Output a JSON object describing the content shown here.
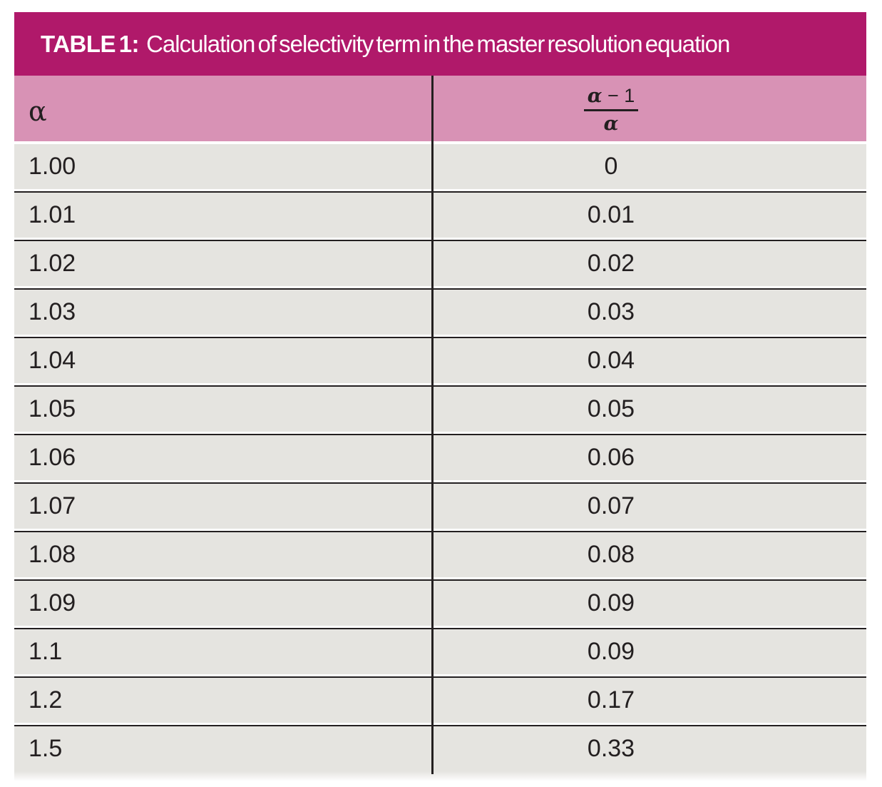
{
  "colors": {
    "title_bar_background": "#b0196a",
    "column_header_background": "#d892b5",
    "row_background": "#e5e4e0",
    "line_color": "#231f20",
    "title_text_color": "#ffffff"
  },
  "table": {
    "title_label": "TABLE 1:",
    "title_text": "Calculation of selectivity term in the master resolution equation",
    "columns": {
      "col1_label": "α",
      "col2_numerator_alpha": "α",
      "col2_numerator_rest": " − 1",
      "col2_denominator": "α"
    },
    "rows": [
      {
        "alpha": "1.00",
        "value": "0"
      },
      {
        "alpha": "1.01",
        "value": "0.01"
      },
      {
        "alpha": "1.02",
        "value": "0.02"
      },
      {
        "alpha": "1.03",
        "value": "0.03"
      },
      {
        "alpha": "1.04",
        "value": "0.04"
      },
      {
        "alpha": "1.05",
        "value": "0.05"
      },
      {
        "alpha": "1.06",
        "value": "0.06"
      },
      {
        "alpha": "1.07",
        "value": "0.07"
      },
      {
        "alpha": "1.08",
        "value": "0.08"
      },
      {
        "alpha": "1.09",
        "value": "0.09"
      },
      {
        "alpha": "1.1",
        "value": "0.09"
      },
      {
        "alpha": "1.2",
        "value": "0.17"
      },
      {
        "alpha": "1.5",
        "value": "0.33"
      }
    ]
  },
  "chart_data": {
    "type": "table",
    "title": "TABLE 1: Calculation of selectivity term in the master resolution equation",
    "columns": [
      "α",
      "(α − 1)/α"
    ],
    "rows": [
      [
        "1.00",
        "0"
      ],
      [
        "1.01",
        "0.01"
      ],
      [
        "1.02",
        "0.02"
      ],
      [
        "1.03",
        "0.03"
      ],
      [
        "1.04",
        "0.04"
      ],
      [
        "1.05",
        "0.05"
      ],
      [
        "1.06",
        "0.06"
      ],
      [
        "1.07",
        "0.07"
      ],
      [
        "1.08",
        "0.08"
      ],
      [
        "1.09",
        "0.09"
      ],
      [
        "1.1",
        "0.09"
      ],
      [
        "1.2",
        "0.17"
      ],
      [
        "1.5",
        "0.33"
      ]
    ]
  }
}
